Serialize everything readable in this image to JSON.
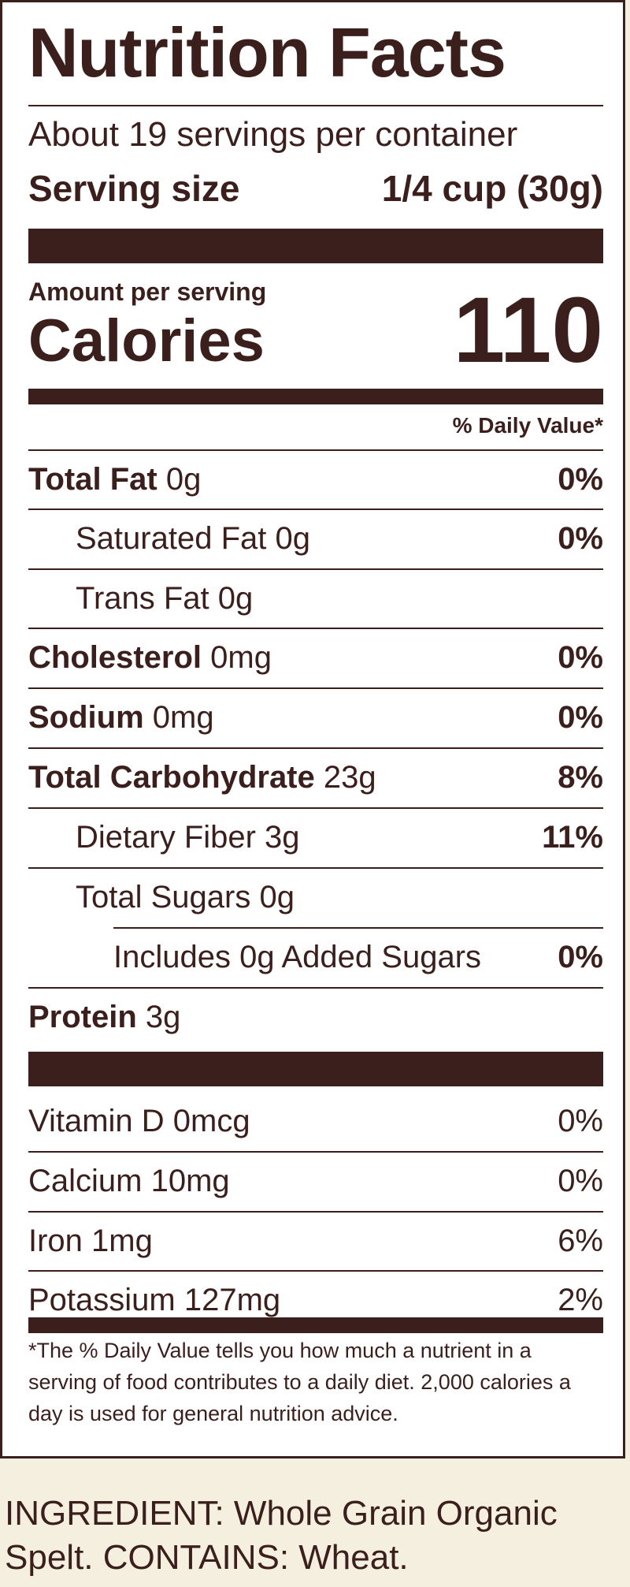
{
  "label": {
    "title": "Nutrition Facts",
    "servings_per_container": "About 19 servings per container",
    "serving_size_label": "Serving size",
    "serving_size_value": "1/4 cup (30g)",
    "amount_per_serving": "Amount per serving",
    "calories_label": "Calories",
    "calories_value": "110",
    "daily_value_header": "% Daily Value*",
    "nutrients": [
      {
        "bold": "Total Fat",
        "amount": " 0g",
        "dv": "0%"
      },
      {
        "bold": "",
        "amount": "Saturated Fat 0g",
        "dv": "0%"
      },
      {
        "bold": "",
        "amount": "Trans Fat 0g",
        "dv": ""
      },
      {
        "bold": "Cholesterol",
        "amount": " 0mg",
        "dv": "0%"
      },
      {
        "bold": "Sodium",
        "amount": " 0mg",
        "dv": "0%"
      },
      {
        "bold": "Total Carbohydrate",
        "amount": " 23g",
        "dv": "8%"
      },
      {
        "bold": "",
        "amount": "Dietary Fiber 3g",
        "dv": "11%"
      },
      {
        "bold": "",
        "amount": "Total Sugars 0g",
        "dv": ""
      },
      {
        "bold": "",
        "amount": "Includes 0g Added Sugars",
        "dv": "0%"
      },
      {
        "bold": "Protein",
        "amount": " 3g",
        "dv": ""
      }
    ],
    "vitamins": [
      {
        "name": "Vitamin D 0mcg",
        "dv": "0%"
      },
      {
        "name": "Calcium 10mg",
        "dv": "0%"
      },
      {
        "name": "Iron 1mg",
        "dv": "6%"
      },
      {
        "name": "Potassium 127mg",
        "dv": "2%"
      }
    ],
    "footnote": "*The % Daily Value tells you how much a nutrient in a serving of food contributes to a daily diet. 2,000 calories a day is used for general nutrition advice."
  },
  "ingredients": "INGREDIENT: Whole Grain Organic Spelt. CONTAINS: Wheat.",
  "colors": {
    "ink": "#3a1f1c",
    "panel": "#ffffff",
    "background": "#f5efe0"
  }
}
